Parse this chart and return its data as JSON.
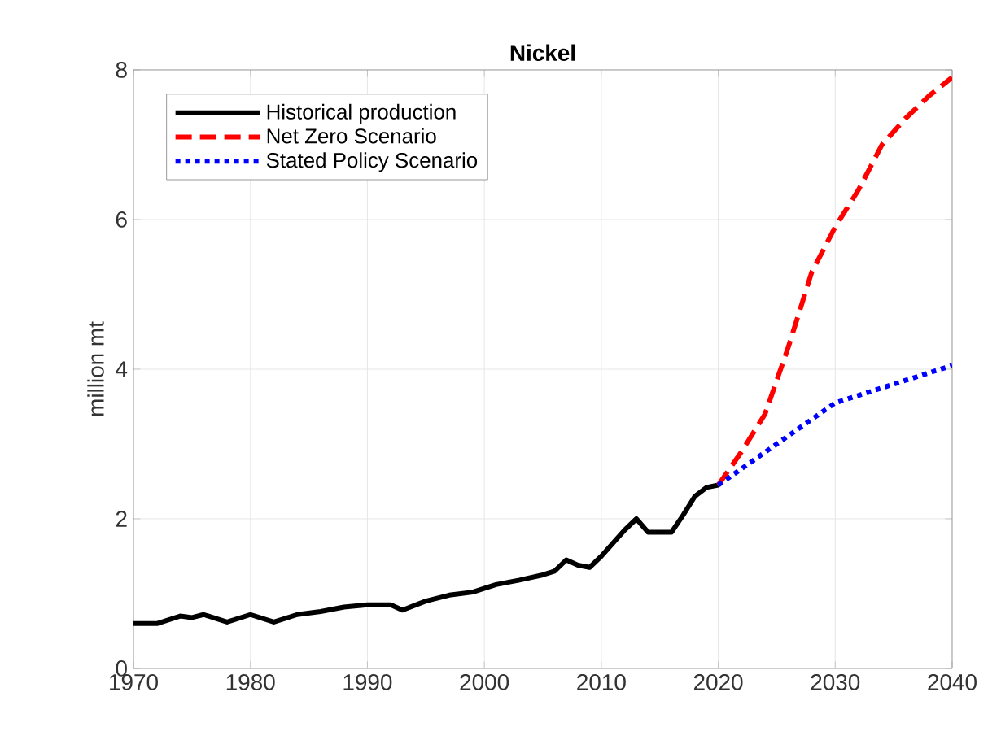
{
  "chart_data": {
    "type": "line",
    "title": "Nickel",
    "ylabel": "million mt",
    "xlim": [
      1970,
      2040
    ],
    "xticks": [
      1970,
      1980,
      1990,
      2000,
      2010,
      2020,
      2030,
      2040
    ],
    "ylim": [
      0,
      8
    ],
    "yticks": [
      0,
      2,
      4,
      6,
      8
    ],
    "grid": true,
    "legend": "top left",
    "marker": "none",
    "series": [
      {
        "name": "Historical production",
        "color": "#000000",
        "line_style": "solid",
        "x": [
          1970,
          1972,
          1974,
          1975,
          1976,
          1978,
          1980,
          1982,
          1984,
          1986,
          1988,
          1990,
          1992,
          1993,
          1995,
          1997,
          1999,
          2001,
          2003,
          2005,
          2006,
          2007,
          2008,
          2009,
          2010,
          2012,
          2013,
          2014,
          2016,
          2017,
          2018,
          2019,
          2020
        ],
        "values": [
          0.6,
          0.6,
          0.7,
          0.68,
          0.72,
          0.62,
          0.72,
          0.62,
          0.72,
          0.76,
          0.82,
          0.85,
          0.85,
          0.78,
          0.9,
          0.98,
          1.02,
          1.12,
          1.18,
          1.25,
          1.3,
          1.45,
          1.38,
          1.35,
          1.5,
          1.85,
          2.0,
          1.82,
          1.82,
          2.05,
          2.3,
          2.42,
          2.45
        ]
      },
      {
        "name": "Net Zero Scenario",
        "color": "#ff0000",
        "line_style": "dashed",
        "x": [
          2020,
          2022,
          2024,
          2026,
          2028,
          2030,
          2032,
          2034,
          2036,
          2038,
          2040
        ],
        "values": [
          2.45,
          2.9,
          3.4,
          4.3,
          5.3,
          5.9,
          6.4,
          7.0,
          7.35,
          7.65,
          7.9
        ]
      },
      {
        "name": "Stated Policy Scenario",
        "color": "#0000ff",
        "line_style": "dotted",
        "x": [
          2020,
          2025,
          2030,
          2035,
          2040
        ],
        "values": [
          2.45,
          3.0,
          3.55,
          3.8,
          4.05
        ]
      }
    ]
  }
}
